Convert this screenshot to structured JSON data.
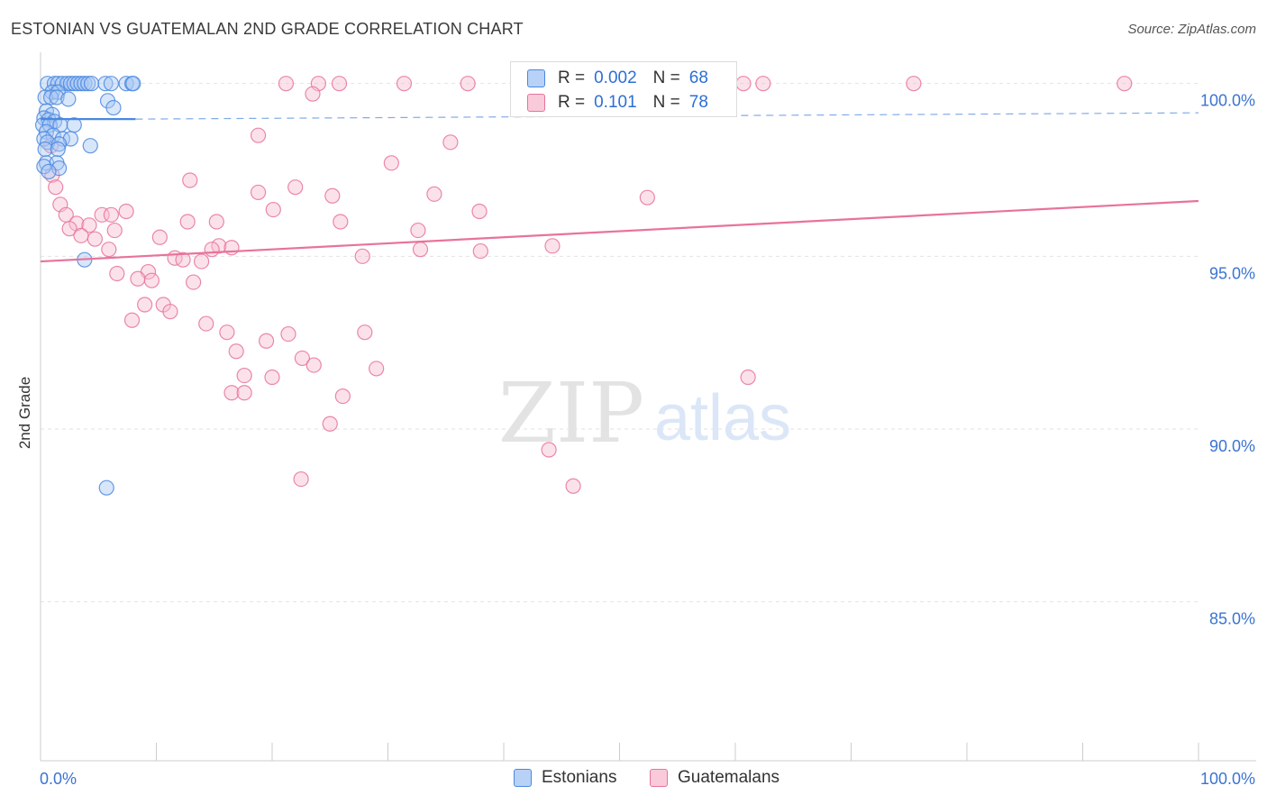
{
  "header": {
    "title": "ESTONIAN VS GUATEMALAN 2ND GRADE CORRELATION CHART",
    "source": "Source: ZipAtlas.com"
  },
  "watermark": {
    "zip": "ZIP",
    "atlas": "atlas"
  },
  "stats_legend": {
    "rows": [
      {
        "r_label": "R =",
        "r_value": "0.002",
        "n_label": "N =",
        "n_value": "68"
      },
      {
        "r_label": "R =",
        "r_value": "0.101",
        "n_label": "N =",
        "n_value": "78"
      }
    ]
  },
  "colors": {
    "estonians": "#4a88e0",
    "estonians_fill": "#a9c8f3",
    "guatemalans": "#e8739a",
    "guatemalans_fill": "#f6bfd0",
    "axis_text": "#3b74d1"
  },
  "chart_data": {
    "type": "scatter",
    "title": "ESTONIAN VS GUATEMALAN 2ND GRADE CORRELATION CHART",
    "xlabel": "",
    "ylabel": "2nd Grade",
    "xlim": [
      0,
      100
    ],
    "ylim": [
      80.4,
      100.8
    ],
    "x_tick_labels": [
      "0.0%",
      "100.0%"
    ],
    "y_ticks": [
      100,
      95,
      90,
      85
    ],
    "y_tick_labels": [
      "100.0%",
      "95.0%",
      "90.0%",
      "85.0%"
    ],
    "grid": true,
    "legend_position": "bottom-center",
    "series": [
      {
        "name": "Estonians",
        "R": 0.002,
        "N": 68,
        "trend": {
          "x": [
            0,
            8.2
          ],
          "y": [
            98.97,
            98.97
          ],
          "extended_to": 100
        },
        "points": [
          [
            0.6,
            100
          ],
          [
            1.2,
            100
          ],
          [
            1.5,
            100
          ],
          [
            1.9,
            100
          ],
          [
            2.3,
            100
          ],
          [
            2.6,
            100
          ],
          [
            2.9,
            100
          ],
          [
            3.2,
            100
          ],
          [
            3.5,
            100
          ],
          [
            3.8,
            100
          ],
          [
            4.1,
            100
          ],
          [
            4.4,
            100
          ],
          [
            5.6,
            100
          ],
          [
            6.1,
            100
          ],
          [
            7.4,
            100
          ],
          [
            7.9,
            100
          ],
          [
            8.0,
            100
          ],
          [
            1.0,
            99.75
          ],
          [
            1.5,
            99.75
          ],
          [
            0.4,
            99.6
          ],
          [
            0.9,
            99.6
          ],
          [
            1.4,
            99.6
          ],
          [
            2.4,
            99.55
          ],
          [
            5.8,
            99.5
          ],
          [
            6.3,
            99.3
          ],
          [
            0.5,
            99.2
          ],
          [
            1.0,
            99.1
          ],
          [
            0.3,
            99.0
          ],
          [
            0.7,
            98.95
          ],
          [
            1.2,
            98.9
          ],
          [
            0.2,
            98.8
          ],
          [
            0.8,
            98.8
          ],
          [
            1.7,
            98.8
          ],
          [
            2.9,
            98.8
          ],
          [
            0.5,
            98.6
          ],
          [
            1.1,
            98.5
          ],
          [
            0.3,
            98.4
          ],
          [
            1.9,
            98.4
          ],
          [
            2.6,
            98.4
          ],
          [
            0.6,
            98.3
          ],
          [
            1.6,
            98.25
          ],
          [
            4.3,
            98.2
          ],
          [
            0.4,
            98.1
          ],
          [
            1.5,
            98.1
          ],
          [
            0.5,
            97.7
          ],
          [
            1.4,
            97.7
          ],
          [
            0.3,
            97.6
          ],
          [
            1.6,
            97.55
          ],
          [
            0.7,
            97.45
          ],
          [
            3.8,
            94.9
          ],
          [
            5.7,
            88.3
          ]
        ]
      },
      {
        "name": "Guatemalans",
        "R": 0.101,
        "N": 78,
        "trend": {
          "x": [
            0,
            100
          ],
          "y": [
            94.85,
            96.6
          ]
        },
        "points": [
          [
            21.2,
            100
          ],
          [
            24.0,
            100
          ],
          [
            25.8,
            100
          ],
          [
            31.4,
            100
          ],
          [
            36.9,
            100
          ],
          [
            59.2,
            100
          ],
          [
            60.7,
            100
          ],
          [
            62.4,
            100
          ],
          [
            75.4,
            100
          ],
          [
            93.6,
            100
          ],
          [
            23.5,
            99.7
          ],
          [
            18.8,
            98.5
          ],
          [
            35.4,
            98.3
          ],
          [
            0.9,
            98.2
          ],
          [
            30.3,
            97.7
          ],
          [
            1.0,
            97.35
          ],
          [
            12.9,
            97.2
          ],
          [
            1.3,
            97.0
          ],
          [
            22.0,
            97.0
          ],
          [
            18.8,
            96.85
          ],
          [
            34.0,
            96.8
          ],
          [
            25.2,
            96.75
          ],
          [
            52.4,
            96.7
          ],
          [
            1.7,
            96.5
          ],
          [
            20.1,
            96.35
          ],
          [
            7.4,
            96.3
          ],
          [
            37.9,
            96.3
          ],
          [
            2.2,
            96.2
          ],
          [
            5.3,
            96.2
          ],
          [
            6.1,
            96.2
          ],
          [
            12.7,
            96.0
          ],
          [
            15.2,
            96.0
          ],
          [
            25.9,
            96.0
          ],
          [
            3.1,
            95.95
          ],
          [
            4.2,
            95.9
          ],
          [
            2.5,
            95.8
          ],
          [
            6.4,
            95.75
          ],
          [
            32.6,
            95.75
          ],
          [
            3.5,
            95.6
          ],
          [
            10.3,
            95.55
          ],
          [
            4.7,
            95.5
          ],
          [
            15.4,
            95.3
          ],
          [
            44.2,
            95.3
          ],
          [
            16.5,
            95.25
          ],
          [
            14.8,
            95.2
          ],
          [
            5.9,
            95.2
          ],
          [
            32.8,
            95.2
          ],
          [
            38.0,
            95.15
          ],
          [
            27.8,
            95.0
          ],
          [
            11.6,
            94.95
          ],
          [
            12.3,
            94.9
          ],
          [
            13.9,
            94.85
          ],
          [
            6.6,
            94.5
          ],
          [
            9.3,
            94.55
          ],
          [
            8.4,
            94.35
          ],
          [
            9.6,
            94.3
          ],
          [
            13.2,
            94.25
          ],
          [
            9.0,
            93.6
          ],
          [
            10.6,
            93.6
          ],
          [
            11.2,
            93.4
          ],
          [
            7.9,
            93.15
          ],
          [
            14.3,
            93.05
          ],
          [
            16.1,
            92.8
          ],
          [
            21.4,
            92.75
          ],
          [
            28.0,
            92.8
          ],
          [
            19.5,
            92.55
          ],
          [
            16.9,
            92.25
          ],
          [
            22.6,
            92.05
          ],
          [
            23.6,
            91.85
          ],
          [
            29.0,
            91.75
          ],
          [
            17.6,
            91.55
          ],
          [
            20.0,
            91.5
          ],
          [
            61.1,
            91.5
          ],
          [
            16.5,
            91.05
          ],
          [
            17.6,
            91.05
          ],
          [
            26.1,
            90.95
          ],
          [
            25.0,
            90.15
          ],
          [
            43.9,
            89.4
          ],
          [
            22.5,
            88.55
          ],
          [
            46.0,
            88.35
          ]
        ]
      }
    ]
  },
  "legend": {
    "items": [
      {
        "label": "Estonians"
      },
      {
        "label": "Guatemalans"
      }
    ]
  }
}
